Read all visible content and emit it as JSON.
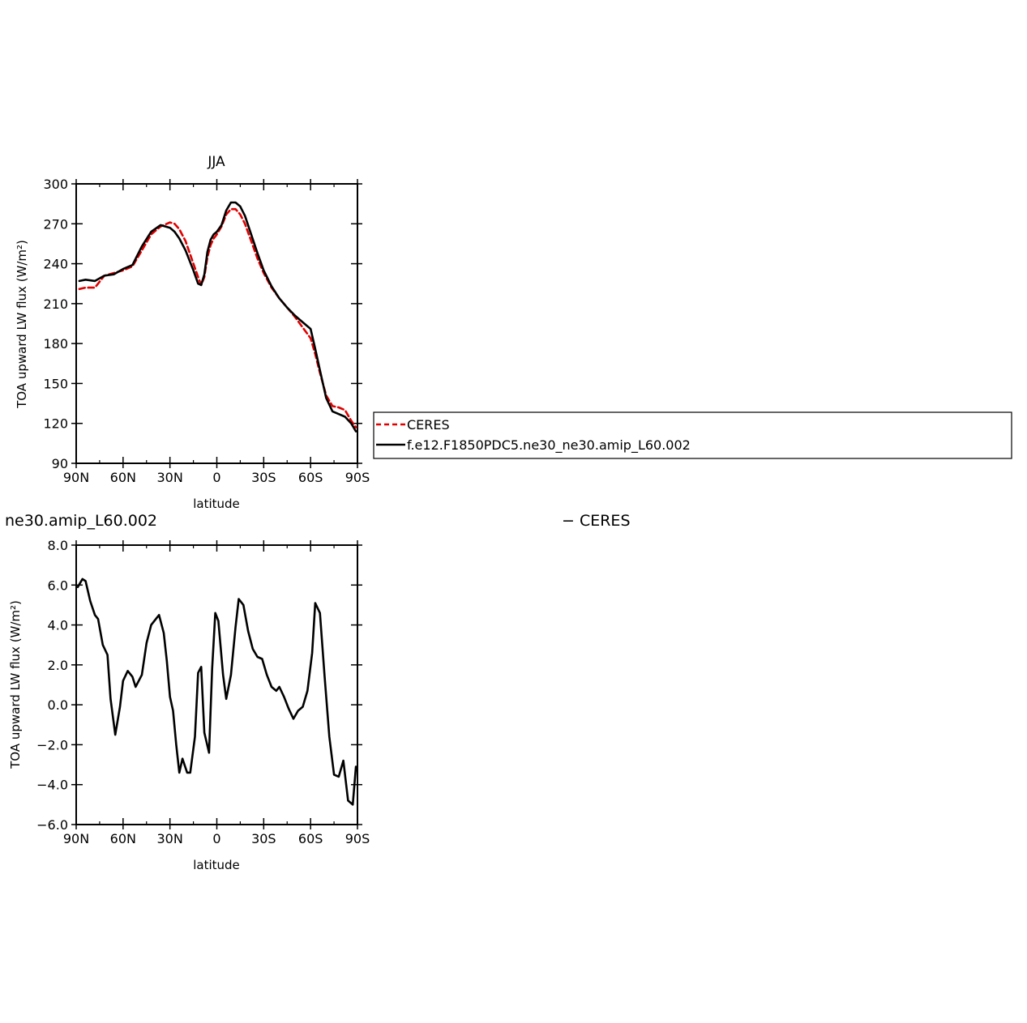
{
  "chart_data": [
    {
      "type": "line",
      "title": "JJA",
      "xlabel": "latitude",
      "ylabel": "TOA upward LW flux (W/m²)",
      "xlim": [
        90,
        -90
      ],
      "ylim": [
        90,
        300
      ],
      "xticks": [
        90,
        60,
        30,
        0,
        -30,
        -60,
        -90
      ],
      "xtick_labels": [
        "90N",
        "60N",
        "30N",
        "0",
        "30S",
        "60S",
        "90S"
      ],
      "yticks": [
        90,
        120,
        150,
        180,
        210,
        240,
        270,
        300
      ],
      "ytick_labels": [
        "90",
        "120",
        "150",
        "180",
        "210",
        "240",
        "270",
        "300"
      ],
      "grid": false,
      "legend": "right",
      "series": [
        {
          "name": "CERES",
          "color": "#e00000",
          "dash": "dashed",
          "x": [
            88,
            84,
            78,
            72,
            66,
            60,
            54,
            48,
            42,
            36,
            30,
            27,
            24,
            20,
            15,
            12,
            10,
            8,
            6,
            4,
            2,
            0,
            -3,
            -6,
            -9,
            -12,
            -15,
            -18,
            -22,
            -26,
            -30,
            -35,
            -40,
            -45,
            -50,
            -55,
            -60,
            -63,
            -66,
            -70,
            -74,
            -78,
            -82,
            -86,
            -89
          ],
          "y": [
            221,
            222,
            222,
            231,
            233,
            235,
            238,
            250,
            262,
            268,
            271,
            270,
            266,
            257,
            240,
            230,
            224,
            230,
            245,
            254,
            259,
            262,
            268,
            277,
            281,
            281,
            277,
            270,
            257,
            244,
            233,
            222,
            214,
            207,
            200,
            192,
            184,
            172,
            158,
            141,
            133,
            132,
            130,
            122,
            117
          ]
        },
        {
          "name": "f.e12.F1850PDC5.ne30_ne30.amip_L60.002",
          "color": "#000000",
          "dash": "solid",
          "x": [
            88,
            84,
            78,
            72,
            66,
            60,
            54,
            48,
            42,
            36,
            30,
            27,
            24,
            20,
            15,
            12,
            10,
            8,
            6,
            4,
            2,
            0,
            -3,
            -6,
            -9,
            -12,
            -15,
            -18,
            -22,
            -26,
            -30,
            -35,
            -40,
            -45,
            -50,
            -55,
            -60,
            -63,
            -66,
            -70,
            -74,
            -78,
            -82,
            -86,
            -89
          ],
          "y": [
            227,
            228,
            227,
            231,
            232,
            236,
            239,
            253,
            264,
            269,
            267,
            264,
            259,
            250,
            235,
            225,
            224,
            232,
            249,
            258,
            262,
            264,
            269,
            280,
            286,
            286,
            283,
            276,
            262,
            248,
            235,
            223,
            214,
            207,
            201,
            196,
            191,
            176,
            160,
            139,
            129,
            127,
            125,
            120,
            114
          ]
        }
      ]
    },
    {
      "type": "line",
      "title": "ne30.amip_L60.002",
      "title_right": "− CERES",
      "xlabel": "latitude",
      "ylabel": "TOA upward LW flux (W/m²)",
      "xlim": [
        90,
        -90
      ],
      "ylim": [
        -6,
        8
      ],
      "xticks": [
        90,
        60,
        30,
        0,
        -30,
        -60,
        -90
      ],
      "xtick_labels": [
        "90N",
        "60N",
        "30N",
        "0",
        "30S",
        "60S",
        "90S"
      ],
      "yticks": [
        -6,
        -4,
        -2,
        0,
        2,
        4,
        6,
        8
      ],
      "ytick_labels": [
        "−6.0",
        "−4.0",
        "−2.0",
        "0.0",
        "2.0",
        "4.0",
        "6.0",
        "8.0"
      ],
      "grid": false,
      "series": [
        {
          "color": "#000000",
          "dash": "solid",
          "x": [
            89,
            86,
            84,
            81,
            78,
            76,
            73,
            70,
            68,
            65,
            62,
            60,
            57,
            54,
            52,
            48,
            45,
            42,
            39,
            37,
            34,
            32,
            30,
            28,
            26,
            24,
            22,
            19,
            17,
            14,
            12,
            10,
            8,
            5,
            3,
            1,
            -1,
            -4,
            -6,
            -9,
            -12,
            -14,
            -17,
            -20,
            -23,
            -26,
            -29,
            -32,
            -35,
            -38,
            -40,
            -43,
            -46,
            -49,
            -52,
            -55,
            -58,
            -61,
            -63,
            -66,
            -69,
            -72,
            -75,
            -78,
            -81,
            -84,
            -87,
            -89
          ],
          "y": [
            5.9,
            6.3,
            6.2,
            5.2,
            4.5,
            4.3,
            3.0,
            2.5,
            0.3,
            -1.5,
            -0.1,
            1.2,
            1.7,
            1.4,
            0.9,
            1.5,
            3.1,
            4.0,
            4.3,
            4.5,
            3.6,
            2.2,
            0.4,
            -0.3,
            -2.0,
            -3.4,
            -2.7,
            -3.4,
            -3.4,
            -1.6,
            1.6,
            1.9,
            -1.4,
            -2.4,
            1.8,
            4.6,
            4.2,
            1.5,
            0.3,
            1.5,
            3.9,
            5.3,
            5.0,
            3.7,
            2.8,
            2.4,
            2.3,
            1.5,
            0.9,
            0.7,
            0.9,
            0.4,
            -0.2,
            -0.7,
            -0.3,
            -0.1,
            0.7,
            2.6,
            5.1,
            4.6,
            1.4,
            -1.6,
            -3.5,
            -3.6,
            -2.8,
            -4.8,
            -5.0,
            -3.1
          ]
        }
      ]
    }
  ]
}
